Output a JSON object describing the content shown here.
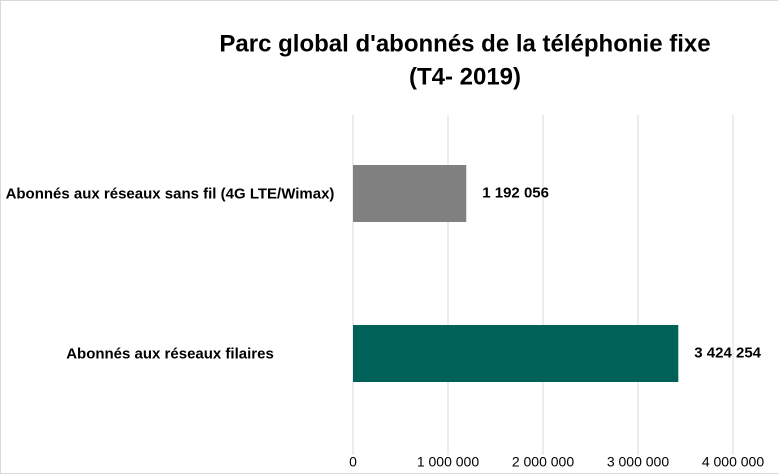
{
  "chart_data": {
    "type": "barh",
    "title": [
      "Parc global d'abonnés de la téléphonie fixe",
      "(T4- 2019)"
    ],
    "categories": [
      "Abonnés aux réseaux sans fil (4G LTE/Wimax)",
      "Abonnés aux réseaux filaires"
    ],
    "values": [
      1192056,
      3424254
    ],
    "value_labels": [
      "1 192 056",
      "3 424 254"
    ],
    "colors": [
      "#808080",
      "#006159"
    ],
    "xlim": [
      0,
      4500000
    ],
    "xticks": [
      0,
      {
        "value": 1000000,
        "label": "1 000 000"
      },
      {
        "value": 2000000,
        "label": "2 000 000"
      },
      {
        "value": 3000000,
        "label": "3 000 000"
      },
      {
        "value": 4000000,
        "label": "4 000 000"
      }
    ],
    "grid": true
  }
}
